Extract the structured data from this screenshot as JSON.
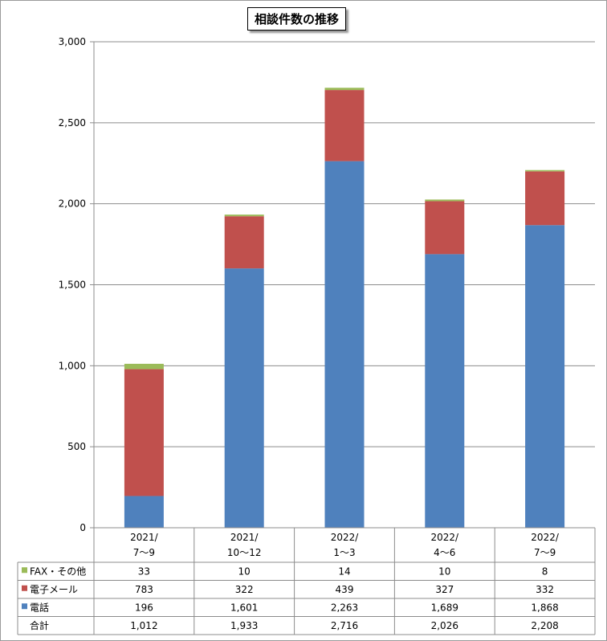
{
  "chart_data": {
    "type": "bar",
    "stacked": true,
    "title": "相談件数の推移",
    "categories": [
      [
        "2021/",
        "7〜9"
      ],
      [
        "2021/",
        "10〜12"
      ],
      [
        "2022/",
        "1〜3"
      ],
      [
        "2022/",
        "4〜6"
      ],
      [
        "2022/",
        "7〜9"
      ]
    ],
    "series": [
      {
        "name": "電話",
        "color": "#4f81bd",
        "values": [
          196,
          1601,
          2263,
          1689,
          1868
        ]
      },
      {
        "name": "電子メール",
        "color": "#c0504d",
        "values": [
          783,
          322,
          439,
          327,
          332
        ]
      },
      {
        "name": "FAX・その他",
        "color": "#9bbb59",
        "values": [
          33,
          10,
          14,
          10,
          8
        ]
      }
    ],
    "total": {
      "name": "合計",
      "values": [
        "1,012",
        "1,933",
        "2,716",
        "2,026",
        "2,208"
      ]
    },
    "ylim": [
      0,
      3000
    ],
    "yticks": [
      "0",
      "500",
      "1,000",
      "1,500",
      "2,000",
      "2,500",
      "3,000"
    ],
    "grid": true,
    "legend": "data-table"
  }
}
